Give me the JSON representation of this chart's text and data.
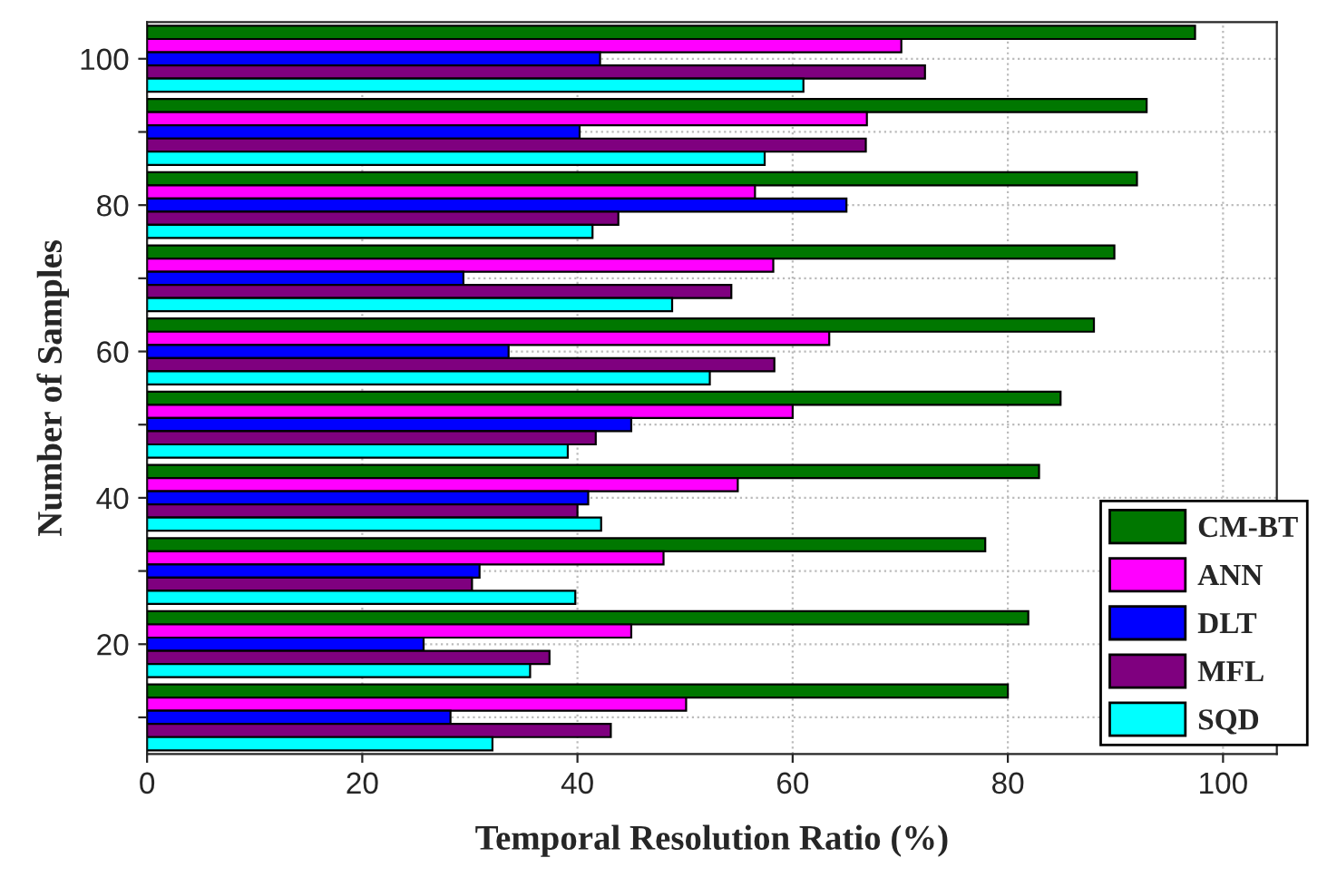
{
  "chart_data": {
    "type": "bar",
    "orientation": "horizontal",
    "xlabel": "Temporal Resolution Ratio (%)",
    "ylabel": "Number of Samples",
    "categories": [
      "100",
      null,
      "80",
      null,
      "60",
      null,
      "40",
      null,
      "20",
      null
    ],
    "series": [
      {
        "name": "CM-BT",
        "color": "#007700",
        "values": [
          97.4,
          92.9,
          92.0,
          89.9,
          88.0,
          84.9,
          82.9,
          77.9,
          81.9,
          80.0
        ]
      },
      {
        "name": "ANN",
        "color": "#ff00ff",
        "values": [
          70.1,
          66.9,
          56.5,
          58.2,
          63.4,
          60.0,
          54.9,
          48.0,
          45.0,
          50.1
        ]
      },
      {
        "name": "DLT",
        "color": "#0000ff",
        "values": [
          42.1,
          40.2,
          65.0,
          29.4,
          33.6,
          45.0,
          41.0,
          30.9,
          25.7,
          28.2
        ]
      },
      {
        "name": "MFL",
        "color": "#7f007f",
        "values": [
          72.3,
          66.8,
          43.8,
          54.3,
          58.3,
          41.7,
          40.0,
          30.2,
          37.4,
          43.1
        ]
      },
      {
        "name": "SQD",
        "color": "#00ffff",
        "values": [
          61.0,
          57.4,
          41.4,
          48.8,
          52.3,
          39.1,
          42.2,
          39.8,
          35.6,
          32.1
        ]
      }
    ],
    "xlim": [
      0,
      105
    ],
    "xticks": [
      0,
      20,
      40,
      60,
      80,
      100
    ],
    "grid": true,
    "legend": "bottom right"
  }
}
